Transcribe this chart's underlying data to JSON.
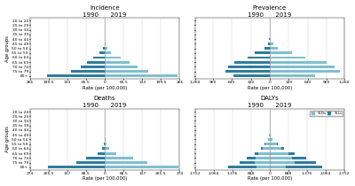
{
  "age_groups": [
    "80+",
    "75 to 79",
    "70 to 74",
    "65 to 69",
    "60 to 64",
    "55 to 59",
    "50 to 54",
    "45 to 49",
    "40 to 44",
    "35 to 39",
    "30 to 34",
    "25 to 29",
    "20 to 24"
  ],
  "incidence_1990": [
    206,
    120,
    85,
    65,
    40,
    18,
    6,
    2,
    0.3,
    0.05,
    0.05,
    0.1,
    0.05
  ],
  "incidence_2019": [
    260,
    155,
    115,
    88,
    55,
    22,
    8,
    3,
    0.5,
    0.05,
    0.05,
    0.1,
    0.05
  ],
  "incidence_xlim": 266,
  "incidence_xticks": [
    266,
    199.5,
    133,
    66.5,
    0,
    66.5,
    133,
    199.5,
    266
  ],
  "incidence_xtick_labels": [
    "266",
    "199.5",
    "133",
    "66.5",
    "0",
    "66.5",
    "133",
    "199.5",
    "266"
  ],
  "prevalence_1990": [
    620,
    740,
    700,
    600,
    380,
    250,
    90,
    35,
    8,
    1,
    0.5,
    0.3,
    0.1
  ],
  "prevalence_2019": [
    760,
    1180,
    1100,
    960,
    600,
    380,
    140,
    55,
    12,
    1.5,
    0.8,
    0.4,
    0.15
  ],
  "prevalence_xlim": 1260,
  "prevalence_xticks": [
    1260,
    960,
    640,
    320,
    0,
    320,
    640,
    960,
    1260
  ],
  "prevalence_xtick_labels": [
    "1,260",
    "960",
    "640",
    "320",
    "0",
    "320",
    "640",
    "960",
    "1,260"
  ],
  "deaths_1990": [
    210,
    105,
    68,
    28,
    10,
    4,
    1.5,
    0.5,
    0.1,
    0.05,
    0.05,
    0.05,
    0.05
  ],
  "deaths_2019": [
    268,
    155,
    105,
    42,
    15,
    6,
    2,
    0.8,
    0.2,
    0.05,
    0.05,
    0.05,
    0.05
  ],
  "deaths_xlim": 274,
  "deaths_xticks": [
    274,
    205.5,
    137,
    68.5,
    0,
    68.5,
    137,
    205.5,
    274
  ],
  "deaths_xtick_labels": [
    "274",
    "205.5",
    "137",
    "68.5",
    "0",
    "68.5",
    "137",
    "205.5",
    "274"
  ],
  "dalys_ylds_1990": [
    480,
    560,
    520,
    430,
    270,
    170,
    62,
    22,
    4.5,
    0.7,
    0.35,
    0.18,
    0.07
  ],
  "dalys_ylds_2019": [
    600,
    900,
    830,
    700,
    440,
    270,
    100,
    38,
    7,
    1.1,
    0.55,
    0.27,
    0.11
  ],
  "dalys_ylls_1990": [
    1050,
    560,
    340,
    140,
    52,
    20,
    7,
    2.5,
    0.5,
    0.18,
    0.18,
    0.18,
    0.18
  ],
  "dalys_ylls_2019": [
    1320,
    790,
    520,
    205,
    76,
    28,
    9,
    3.5,
    0.9,
    0.18,
    0.18,
    0.18,
    0.18
  ],
  "dalys_xlim": 2752,
  "dalys_xticks": [
    2752,
    2064,
    1376,
    688,
    0,
    688,
    1376,
    2064,
    2752
  ],
  "dalys_xtick_labels": [
    "2,752",
    "2,064",
    "1,376",
    "688",
    "0",
    "688",
    "1,376",
    "2,064",
    "2,752"
  ],
  "color_dark": "#2e7d9e",
  "color_light": "#7fbfcf",
  "bar_height": 0.55,
  "title_fontsize": 5,
  "label_fontsize": 3.8,
  "tick_fontsize": 3.2,
  "ylabel_fontsize": 3.8
}
